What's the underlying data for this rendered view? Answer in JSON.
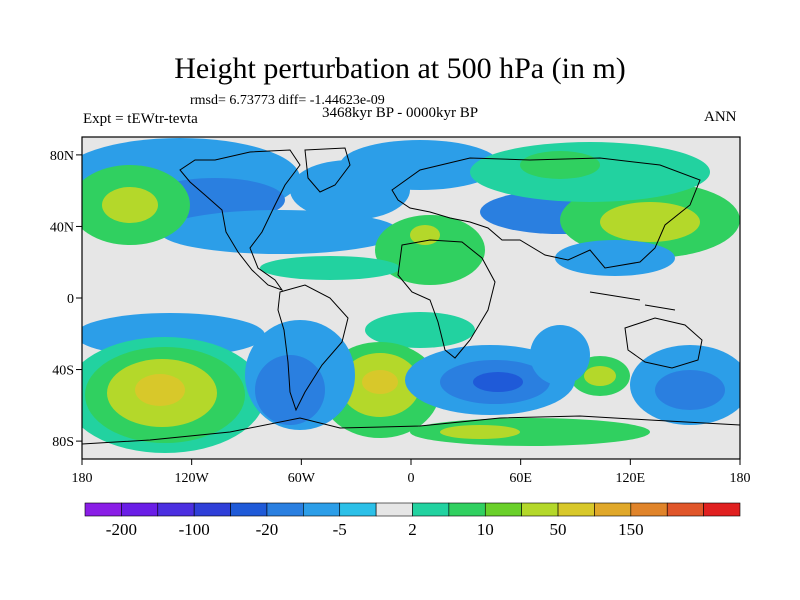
{
  "title": "Height perturbation at 500 hPa (in m)",
  "stats_line": "rmsd= 6.73773 diff= -1.44623e-09",
  "period": "3468kyr BP - 0000kyr BP",
  "experiment": "Expt = tEWtr-tevta",
  "season": "ANN",
  "lat_ticks": [
    {
      "value": 80,
      "label": "80N"
    },
    {
      "value": 40,
      "label": "40N"
    },
    {
      "value": 0,
      "label": "0"
    },
    {
      "value": -40,
      "label": "40S"
    },
    {
      "value": -80,
      "label": "80S"
    }
  ],
  "lon_ticks": [
    {
      "value": -180,
      "label": "180"
    },
    {
      "value": -120,
      "label": "120W"
    },
    {
      "value": -60,
      "label": "60W"
    },
    {
      "value": 0,
      "label": "0"
    },
    {
      "value": 60,
      "label": "60E"
    },
    {
      "value": 120,
      "label": "120E"
    },
    {
      "value": 180,
      "label": "180"
    }
  ],
  "colorbar": {
    "colors": [
      "#8a1ee6",
      "#6a1ee6",
      "#4b2fe0",
      "#2f3fd8",
      "#1f5ad8",
      "#2a7fe0",
      "#2c9ee8",
      "#2cc0e8",
      "#e6e6e6",
      "#22d2a0",
      "#30d060",
      "#6ad02a",
      "#b4d82a",
      "#d8c82a",
      "#e0a82a",
      "#e0842a",
      "#e0562a",
      "#e02020"
    ],
    "labels": [
      {
        "index": 1,
        "text": "-200"
      },
      {
        "index": 3,
        "text": "-100"
      },
      {
        "index": 5,
        "text": "-20"
      },
      {
        "index": 7,
        "text": "-5"
      },
      {
        "index": 9,
        "text": "2"
      },
      {
        "index": 11,
        "text": "10"
      },
      {
        "index": 13,
        "text": "50"
      },
      {
        "index": 15,
        "text": "150"
      }
    ]
  },
  "field_colors": {
    "neutral": "#e6e6e6",
    "light_blue": "#2c9ee8",
    "blue": "#2a7fe0",
    "dark_blue": "#1f5ad8",
    "teal": "#22d2a0",
    "green": "#30d060",
    "yellow_green": "#b4d82a",
    "yellow": "#d8c82a",
    "orange": "#e0a82a"
  }
}
